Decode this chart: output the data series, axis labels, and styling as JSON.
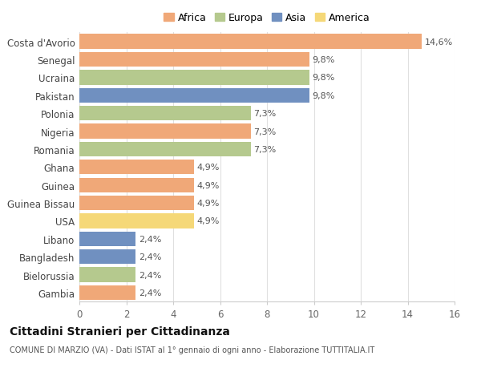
{
  "countries": [
    "Costa d'Avorio",
    "Senegal",
    "Ucraina",
    "Pakistan",
    "Polonia",
    "Nigeria",
    "Romania",
    "Ghana",
    "Guinea",
    "Guinea Bissau",
    "USA",
    "Libano",
    "Bangladesh",
    "Bielorussia",
    "Gambia"
  ],
  "values": [
    14.6,
    9.8,
    9.8,
    9.8,
    7.3,
    7.3,
    7.3,
    4.9,
    4.9,
    4.9,
    4.9,
    2.4,
    2.4,
    2.4,
    2.4
  ],
  "labels": [
    "14,6%",
    "9,8%",
    "9,8%",
    "9,8%",
    "7,3%",
    "7,3%",
    "7,3%",
    "4,9%",
    "4,9%",
    "4,9%",
    "4,9%",
    "2,4%",
    "2,4%",
    "2,4%",
    "2,4%"
  ],
  "continents": [
    "Africa",
    "Africa",
    "Europa",
    "Asia",
    "Europa",
    "Africa",
    "Europa",
    "Africa",
    "Africa",
    "Africa",
    "America",
    "Asia",
    "Asia",
    "Europa",
    "Africa"
  ],
  "colors": {
    "Africa": "#F0A878",
    "Europa": "#B5C98E",
    "Asia": "#7090C0",
    "America": "#F5D878"
  },
  "legend_order": [
    "Africa",
    "Europa",
    "Asia",
    "America"
  ],
  "title": "Cittadini Stranieri per Cittadinanza",
  "subtitle": "COMUNE DI MARZIO (VA) - Dati ISTAT al 1° gennaio di ogni anno - Elaborazione TUTTITALIA.IT",
  "xlim": [
    0,
    16
  ],
  "xticks": [
    0,
    2,
    4,
    6,
    8,
    10,
    12,
    14,
    16
  ],
  "background_color": "#ffffff",
  "grid_color": "#e0e0e0"
}
